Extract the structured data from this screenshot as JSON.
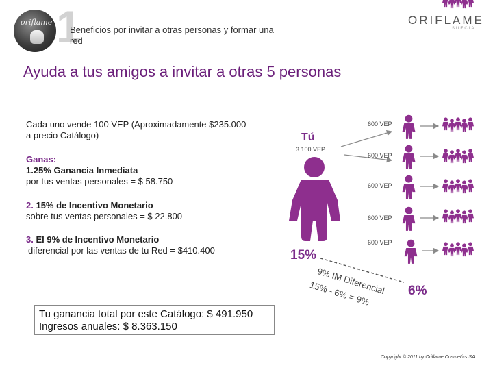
{
  "header": {
    "step_number": "1",
    "title": "Beneficios por invitar a otras personas y formar una red",
    "brand": "ORIFLAME",
    "brand_tagline": "SUECIA",
    "badge_text": "oriflame"
  },
  "headline": "Ayuda a tus amigos a invitar a otras 5 personas",
  "intro": "Cada uno vende 100 VEP (Aproximadamente $235.000 a precio Catálogo)",
  "earnings": {
    "heading": "Ganas:",
    "item1": "1.25% Ganancia Inmediata",
    "item1_detail": "por tus ventas personales = $ 58.750",
    "item2_num": "2.",
    "item2": "15% de Incentivo Monetario",
    "item2_detail": "sobre tus ventas personales = $ 22.800",
    "item3_num": "3.",
    "item3": "El 9% de Incentivo Monetario",
    "item3_detail": "diferencial por las ventas de tu Red = $410.400"
  },
  "diagram": {
    "you_label": "Tú",
    "you_amount": "3.100 VEP",
    "friend_amounts": [
      "600 VEP",
      "600 VEP",
      "600 VEP",
      "600 VEP",
      "600 VEP"
    ],
    "left_percent": "15%",
    "right_percent": "6%",
    "differential_label": "9% IM Diferencial",
    "formula": "15% - 6% = 9%"
  },
  "total": {
    "line1": "Tu ganancia total por este Catálogo: $ 491.950",
    "line2": "Ingresos anuales: $ 8.363.150"
  },
  "copyright": "Copyright © 2011 by Oriflame Cosmetics SA",
  "colors": {
    "accent": "#7b2c8a",
    "figure": "#8e2f8e"
  }
}
